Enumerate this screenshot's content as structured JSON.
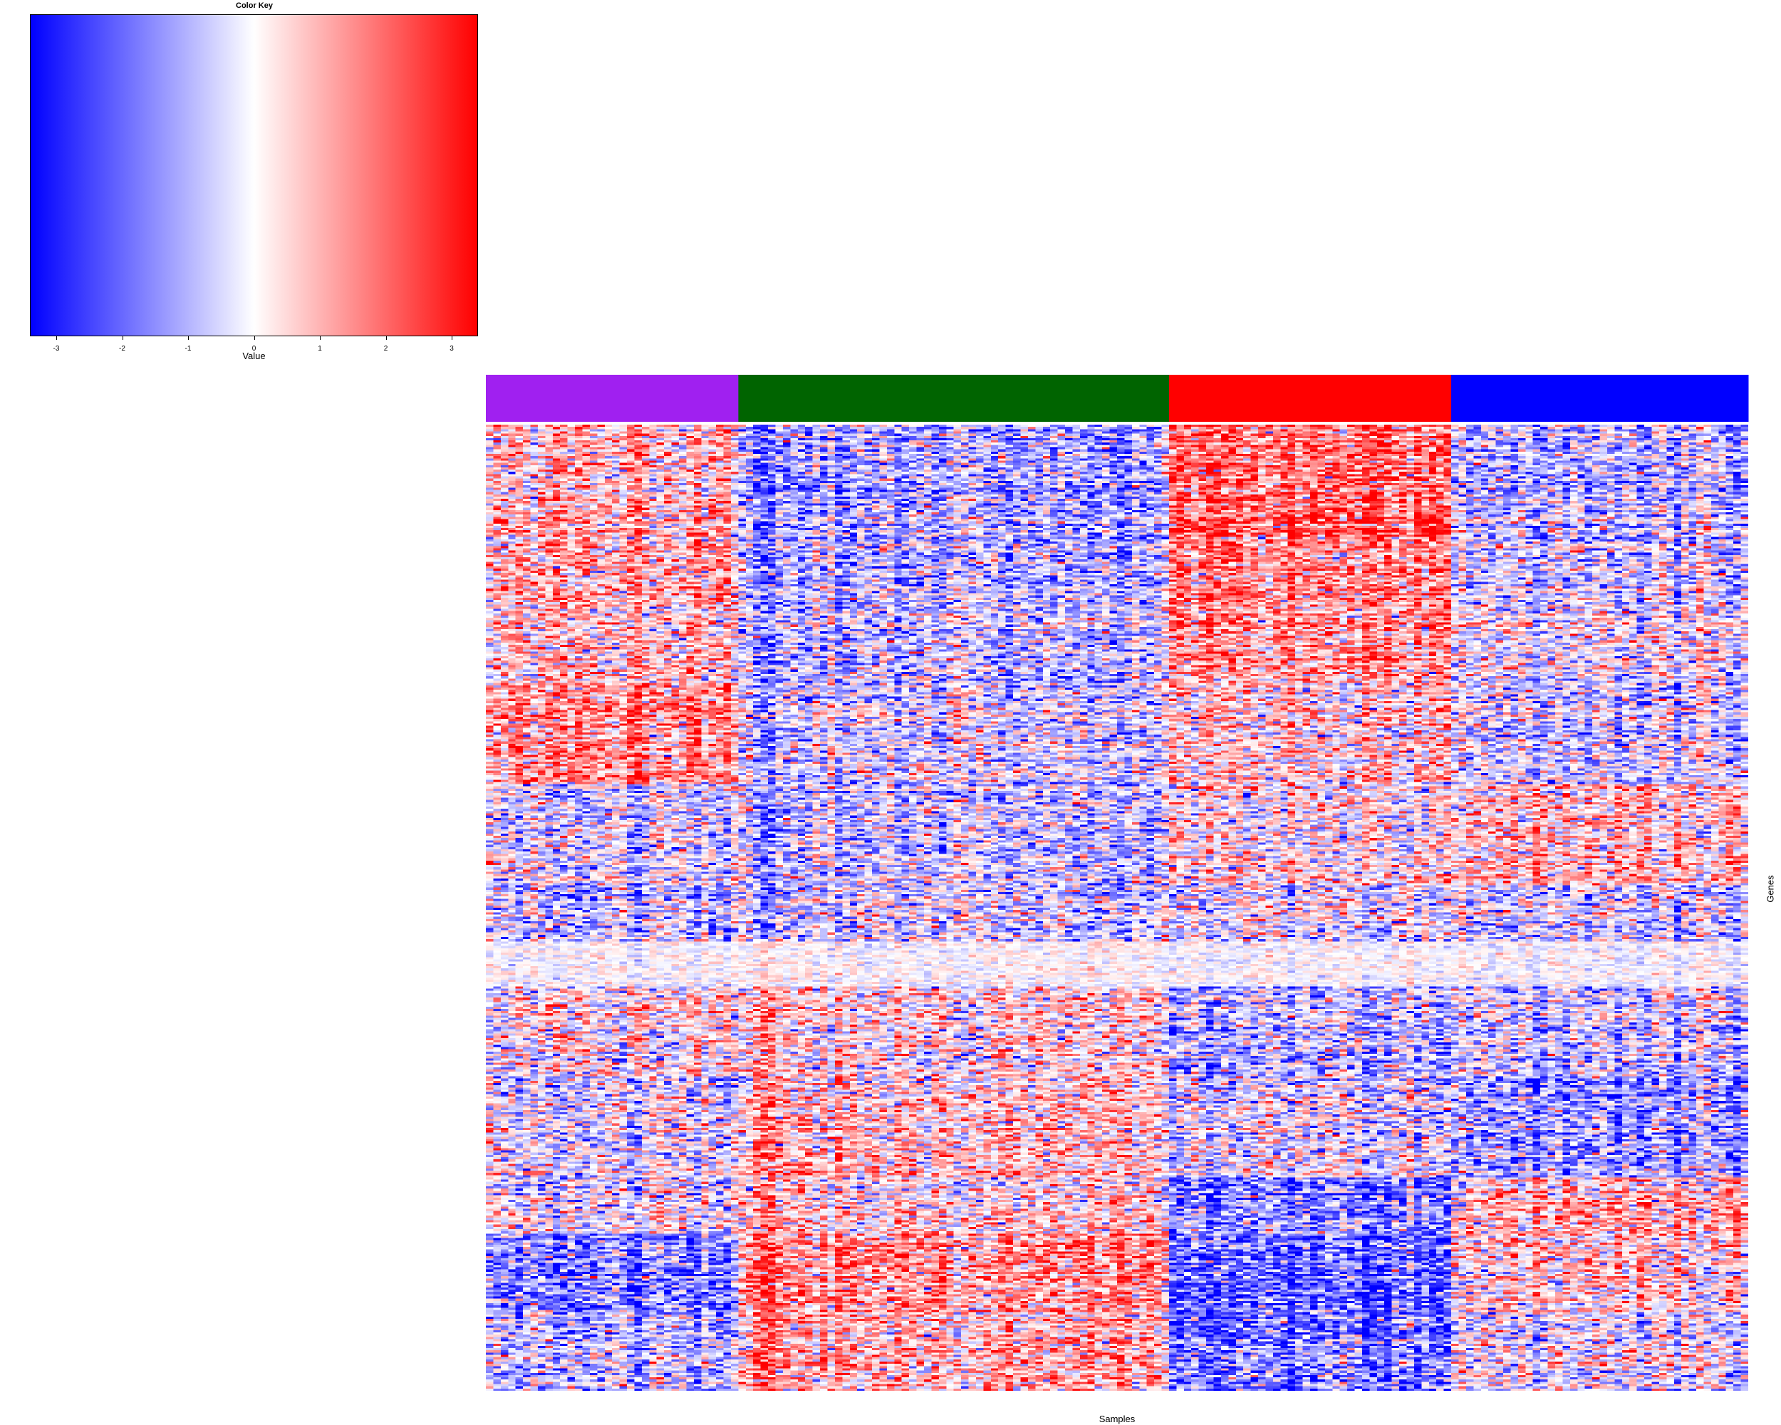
{
  "chart_data": {
    "type": "heatmap",
    "title": "",
    "xlabel": "Samples",
    "ylabel": "Genes",
    "color_key": {
      "title": "Color Key",
      "xlabel": "Value",
      "range": [
        -3.4,
        3.4
      ],
      "ticks": [
        -3,
        -2,
        -1,
        0,
        1,
        2,
        3
      ],
      "tick_labels": [
        "-3",
        "-2",
        "-1",
        "0",
        "1",
        "2",
        "3"
      ],
      "low_color": "#0000ff",
      "mid_color": "#ffffff",
      "high_color": "#ff0000"
    },
    "sample_groups": [
      {
        "color": "#a020f0",
        "n_samples": 34
      },
      {
        "color": "#006400",
        "n_samples": 58
      },
      {
        "color": "#ff0000",
        "n_samples": 38
      },
      {
        "color": "#0000ff",
        "n_samples": 40
      }
    ],
    "n_genes": 430,
    "gene_blocks": [
      {
        "rows": [
          0,
          52
        ],
        "means": [
          0.9,
          -1.0,
          2.0,
          -0.8
        ]
      },
      {
        "rows": [
          52,
          80
        ],
        "means": [
          1.0,
          -0.9,
          1.5,
          -0.5
        ]
      },
      {
        "rows": [
          80,
          115
        ],
        "means": [
          0.6,
          -0.7,
          1.2,
          -0.2
        ]
      },
      {
        "rows": [
          115,
          160
        ],
        "means": [
          1.4,
          -0.5,
          0.4,
          -0.6
        ]
      },
      {
        "rows": [
          160,
          205
        ],
        "means": [
          -0.3,
          -0.6,
          0.2,
          0.9
        ]
      },
      {
        "rows": [
          205,
          230
        ],
        "means": [
          -0.8,
          -0.5,
          -0.2,
          -0.6
        ]
      },
      {
        "rows": [
          230,
          250
        ],
        "means": [
          -0.1,
          0.0,
          -0.1,
          -0.2
        ]
      },
      {
        "rows": [
          250,
          290
        ],
        "means": [
          0.2,
          0.4,
          -0.8,
          -0.6
        ]
      },
      {
        "rows": [
          290,
          335
        ],
        "means": [
          -0.4,
          0.6,
          -0.3,
          -1.3
        ]
      },
      {
        "rows": [
          335,
          360
        ],
        "means": [
          -0.2,
          0.4,
          -1.6,
          0.9
        ]
      },
      {
        "rows": [
          360,
          395
        ],
        "means": [
          -1.6,
          1.4,
          -2.0,
          0.6
        ]
      },
      {
        "rows": [
          395,
          430
        ],
        "means": [
          -0.8,
          0.9,
          -1.7,
          -0.3
        ]
      }
    ]
  }
}
